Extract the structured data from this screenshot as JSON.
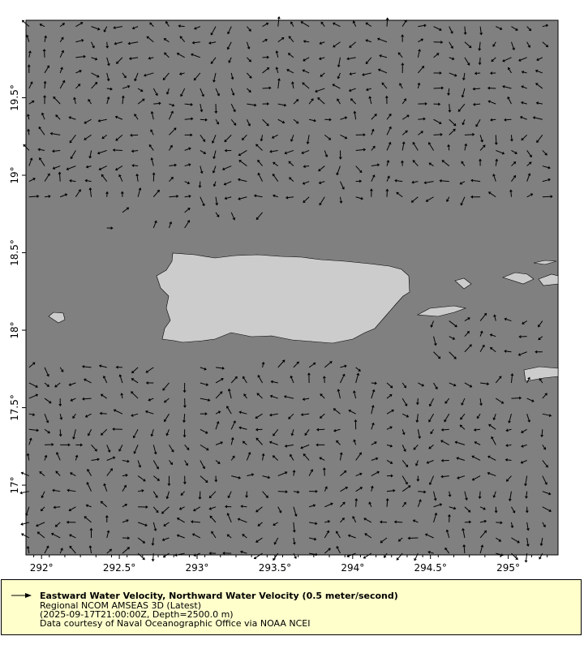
{
  "chart_data": {
    "type": "vector-map",
    "x_ticks": [
      "292°",
      "292.5°",
      "293°",
      "293.5°",
      "294°",
      "294.5°",
      "295°"
    ],
    "x_tick_values": [
      292,
      292.5,
      293,
      293.5,
      294,
      294.5,
      295
    ],
    "y_ticks": [
      "17°",
      "17.5°",
      "18°",
      "18.5°",
      "19°",
      "19.5°"
    ],
    "y_tick_values": [
      17,
      17.5,
      18,
      18.5,
      19,
      19.5
    ],
    "xlim": [
      291.9,
      295.32
    ],
    "ylim": [
      16.55,
      20.0
    ],
    "grid_spacing_deg": 0.1,
    "ocean_color": "#808080",
    "land_color": "#cccccc",
    "vector_color": "#000000"
  },
  "legend": {
    "title": "Eastward Water Velocity, Northward Water Velocity (0.5 meter/second)",
    "line2": "Regional NCOM AMSEAS 3D (Latest)",
    "line3": "(2025-09-17T21:00:00Z, Depth=2500.0 m)",
    "line4": "Data courtesy of Naval Oceanographic Office via NOAA NCEI",
    "background": "#ffffcc"
  }
}
